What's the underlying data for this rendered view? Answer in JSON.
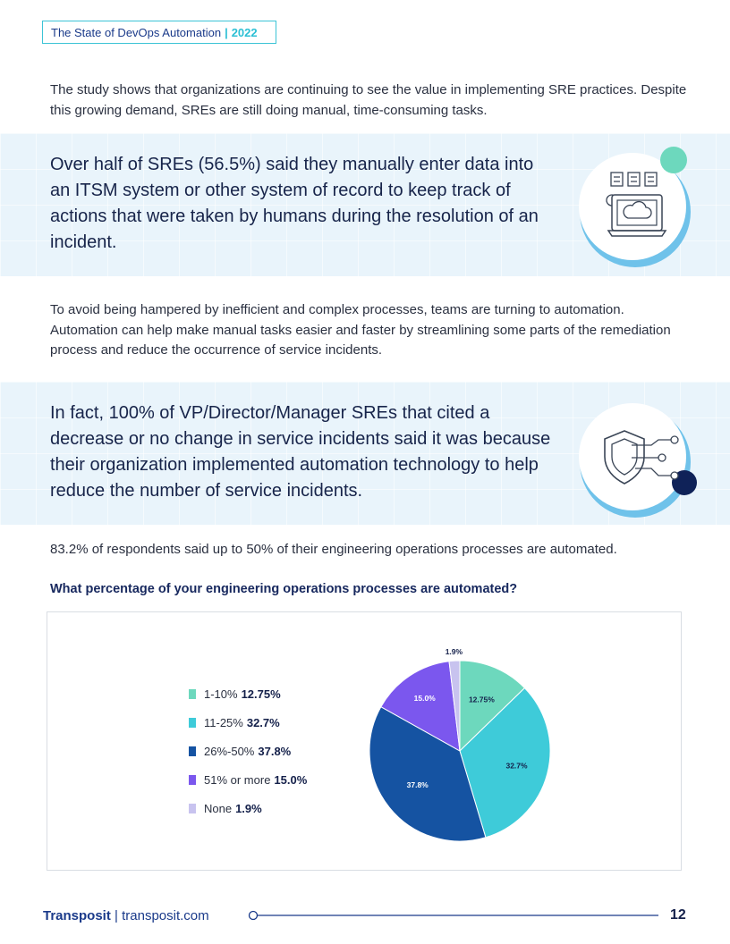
{
  "header": {
    "title": "The State of DevOps Automation",
    "separator": "|",
    "year": "2022"
  },
  "intro_paragraph": "The study shows that organizations are continuing to see the value in implementing SRE practices. Despite this growing demand, SREs are still doing manual, time-consuming tasks.",
  "callout1": {
    "text": "Over half of SREs (56.5%) said they manually enter data into an ITSM system or other system of record to keep track of actions that were taken by humans during the resolution of an incident.",
    "icon": "laptop-cloud-icon"
  },
  "middle_paragraph": "To avoid being hampered by inefficient and complex processes, teams are turning to automation. Automation can help make manual tasks easier and faster by streamlining some parts of the remediation process and reduce the occurrence of service incidents.",
  "callout2": {
    "text": "In fact, 100% of VP/Director/Manager SREs that cited a decrease or no change in service incidents said it was because their organization implemented automation technology to help reduce the number of service incidents.",
    "icon": "shield-circuit-icon"
  },
  "stat_line": "83.2% of respondents said up to 50% of their engineering operations processes are automated.",
  "chart_title": "What percentage of your engineering operations processes are automated?",
  "chart_data": {
    "type": "pie",
    "title": "What percentage of your engineering operations processes are automated?",
    "legend_position": "left",
    "slices": [
      {
        "label": "1-10%",
        "value": 12.75,
        "display": "12.75%",
        "color": "#6dd8bd"
      },
      {
        "label": "11-25%",
        "value": 32.7,
        "display": "32.7%",
        "color": "#3ecbd9"
      },
      {
        "label": "26%-50%",
        "value": 37.8,
        "display": "37.8%",
        "color": "#1553a2"
      },
      {
        "label": "51% or more",
        "value": 15.0,
        "display": "15.0%",
        "color": "#7b57ee"
      },
      {
        "label": "None",
        "value": 1.9,
        "display": "1.9%",
        "color": "#c8c3ef"
      }
    ]
  },
  "footer": {
    "brand": "Transposit",
    "separator": "|",
    "url": "transposit.com",
    "page_number": "12"
  },
  "colors": {
    "accent": "#3ecbd9",
    "navy": "#17244a",
    "band": "#e9f4fb"
  }
}
